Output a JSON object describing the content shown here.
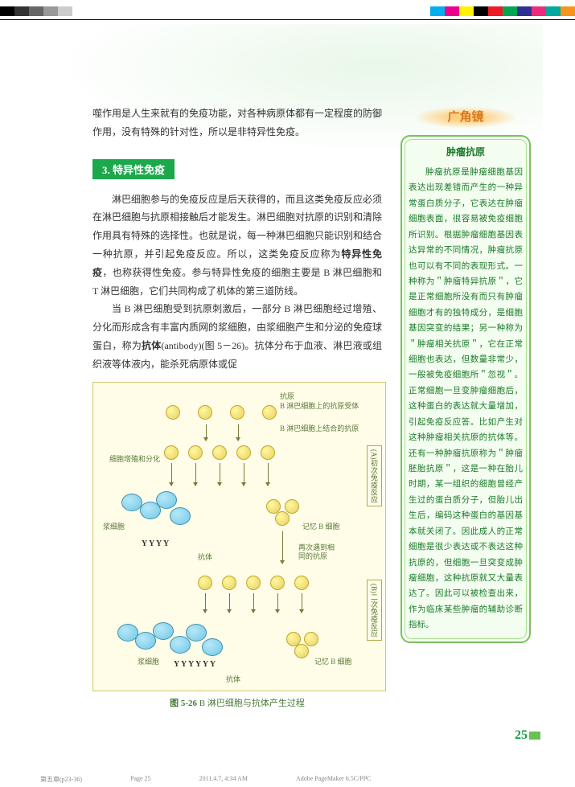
{
  "colorBar": {
    "left": [
      "#000000",
      "#333333",
      "#666666",
      "#999999",
      "#cccccc",
      "#ffffff"
    ],
    "right": [
      "#00aeef",
      "#ec008c",
      "#fff200",
      "#000000",
      "#ed1c24",
      "#00a651",
      "#2e3192",
      "#ee2a7b",
      "#00a99d",
      "#f7941d"
    ]
  },
  "intro": "噬作用是人生来就有的免疫功能，对各种病原体都有一定程度的防御作用，没有特殊的针对性，所以是非特异性免疫。",
  "section": {
    "number": "3.",
    "title": "特异性免疫"
  },
  "body": {
    "p1": "淋巴细胞参与的免疫反应是后天获得的，而且这类免疫反应必须在淋巴细胞与抗原相接触后才能发生。淋巴细胞对抗原的识别和清除作用具有特殊的选择性。也就是说，每一种淋巴细胞只能识别和结合一种抗原，并引起免疫反应。所以，这类免疫反应称为",
    "p1_bold1": "特异性免疫",
    "p1_cont": "，也称获得性免疫。参与特异性免疫的细胞主要是 B 淋巴细胞和 T 淋巴细胞，它们共同构成了机体的第三道防线。",
    "p2": "当 B 淋巴细胞受到抗原刺激后，一部分 B 淋巴细胞经过增殖、分化而形成含有丰富内质网的浆细胞，由浆细胞产生和分泌的免疫球蛋白，称为",
    "p2_bold": "抗体",
    "p2_en": "(antibody)",
    "p2_cont": "(图 5－26)。抗体分布于血液、淋巴液或组织液等体液内，能杀死病原体或促"
  },
  "figure": {
    "labels": {
      "antigen": "抗原",
      "bcell_receptor": "B 淋巴细胞上的抗原受体",
      "bcell_antigen": "B 淋巴细胞上结合的抗原",
      "proliferation": "细胞增殖和分化",
      "plasma": "浆细胞",
      "antibody": "抗体",
      "memory": "记忆 B 细胞",
      "reencounter": "再次遇到相同的抗原",
      "primary_A": "(A)",
      "primary": "初次免疫反应",
      "secondary_B": "(B)",
      "secondary": "二次免疫反应"
    },
    "caption_num": "图 5-26",
    "caption_text": "B 淋巴细胞与抗体产生过程"
  },
  "sidebar": {
    "header": "广角镜",
    "title": "肿瘤抗原",
    "text": "肿瘤抗原是肿瘤细胞基因表达出现差错而产生的一种异常蛋白质分子，它表达在肿瘤细胞表面，很容易被免疫细胞所识别。根据肿瘤细胞基因表达异常的不同情况，肿瘤抗原也可以有不同的表现形式。一种称为＂肿瘤特异抗原＂，它是正常细胞所没有而只有肿瘤细胞才有的独特成分，是细胞基因突变的结果；另一种称为＂肿瘤相关抗原＂，它在正常细胞也表达，但数量非常少，一般被免疫细胞所＂忽视＂。正常细胞一旦变肿瘤细胞后，这种蛋白的表达就大量增加，引起免疫反应答。比如产生对这种肿瘤相关抗原的抗体等。还有一种肿瘤抗原称为＂肿瘤胚胎抗原＂，这是一种在胎儿时期，某一组织的细胞曾经产生过的蛋白质分子，但胎儿出生后，编码这种蛋白的基因基本就关闭了。因此成人的正常细胞是很少表达或不表达这种抗原的，但细胞一旦突变成肿瘤细胞，这种抗原就又大量表达了。因此可以被检查出来，作为临床某些肿瘤的辅助诊断指标。"
  },
  "pageNumber": "25",
  "footer": {
    "chapter": "第五章(p23-36)",
    "page": "Page 25",
    "date": "2011.4.7, 4:34 AM",
    "software": "Adobe PageMaker 6.5C/PPC"
  }
}
